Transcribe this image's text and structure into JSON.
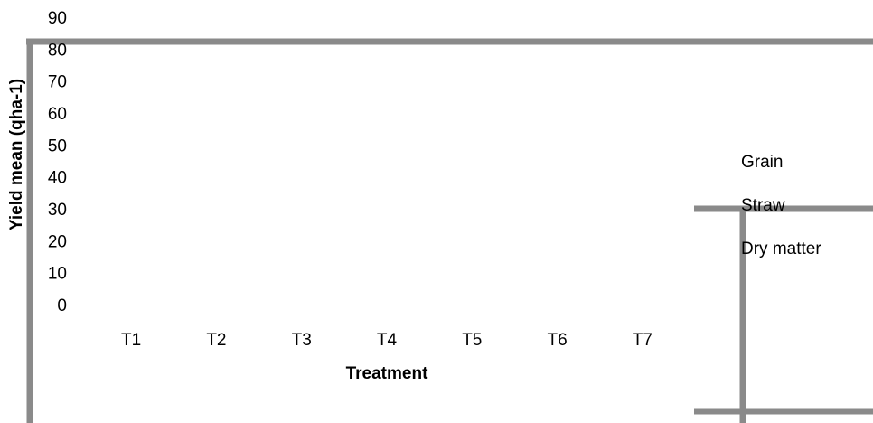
{
  "chart_data": {
    "type": "bar",
    "categories": [
      "T1",
      "T2",
      "T3",
      "T4",
      "T5",
      "T6",
      "T7"
    ],
    "yticks": [
      0,
      10,
      20,
      30,
      40,
      50,
      60,
      70,
      80,
      90
    ],
    "ylim": [
      0,
      90
    ],
    "xlabel": "Treatment",
    "ylabel": "Yield mean (qha-1)",
    "series": [
      {
        "name": "Grain"
      },
      {
        "name": "Straw"
      },
      {
        "name": "Dry matter"
      }
    ],
    "legend": "right",
    "grid": false
  },
  "colors": {
    "frame": "#8a8a8a"
  }
}
